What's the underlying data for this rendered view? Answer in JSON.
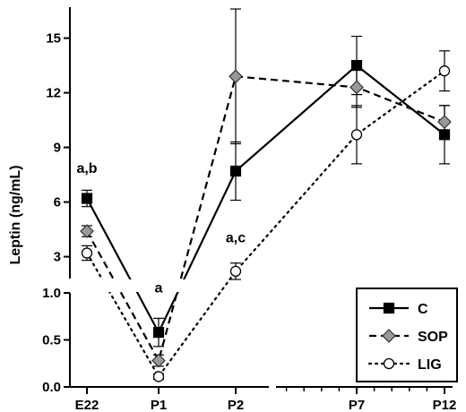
{
  "chart_data": {
    "type": "line",
    "ylabel": "Leptin (ng/mL)",
    "categories": [
      "E22",
      "P1",
      "P2",
      "P7",
      "P12"
    ],
    "upper_panel": {
      "ylim": [
        1.8,
        16.7
      ],
      "ticks": [
        3,
        6,
        9,
        12,
        15
      ]
    },
    "lower_panel": {
      "ylim": [
        0,
        1.0
      ],
      "ticks": [
        0.0,
        0.5,
        1.0
      ]
    },
    "series": [
      {
        "name": "C",
        "marker": "square",
        "color": "#000000",
        "fill": "#000000",
        "line": "solid",
        "values": [
          6.2,
          0.58,
          7.7,
          13.5,
          9.7
        ],
        "errors": [
          0.45,
          0.15,
          1.6,
          1.6,
          1.6
        ]
      },
      {
        "name": "SOP",
        "marker": "diamond",
        "color": "#000000",
        "fill": "#999999",
        "line": "dashed",
        "values": [
          4.4,
          0.28,
          12.9,
          12.3,
          10.4
        ],
        "errors": [
          0.3,
          0.06,
          3.7,
          1.1,
          0.9
        ]
      },
      {
        "name": "LIG",
        "marker": "circle",
        "color": "#000000",
        "fill": "#ffffff",
        "line": "dotted",
        "values": [
          3.2,
          0.11,
          2.2,
          9.7,
          13.2
        ],
        "errors": [
          0.4,
          0.03,
          0.45,
          1.6,
          1.1
        ]
      }
    ],
    "annotations": [
      {
        "text": "a,b",
        "category": "E22",
        "y": 7.6
      },
      {
        "text": "a",
        "category": "P1",
        "y": 1.05
      },
      {
        "text": "a,c",
        "category": "P2",
        "y": 3.8
      }
    ],
    "legend": {
      "position": "bottom-right"
    }
  }
}
